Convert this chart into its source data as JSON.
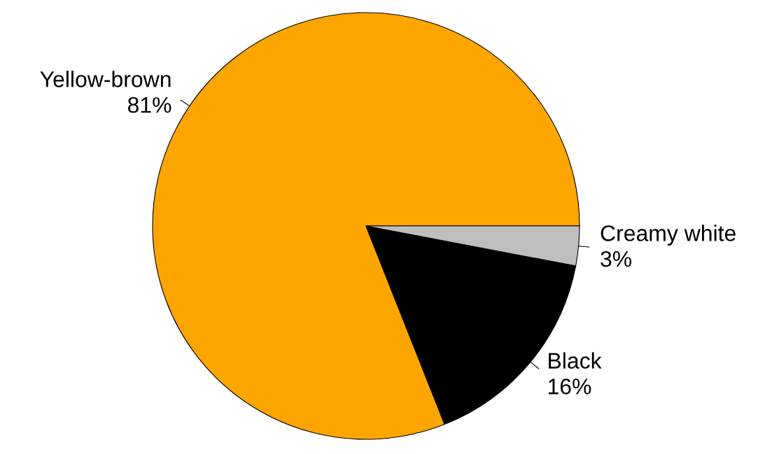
{
  "chart_data": {
    "type": "pie",
    "categories": [
      "Yellow-brown",
      "Black",
      "Creamy white"
    ],
    "values": [
      81,
      16,
      3
    ],
    "colors": [
      "#ffa500",
      "#000000",
      "#bebebe"
    ],
    "value_labels": [
      "81%",
      "16%",
      "3%"
    ]
  }
}
